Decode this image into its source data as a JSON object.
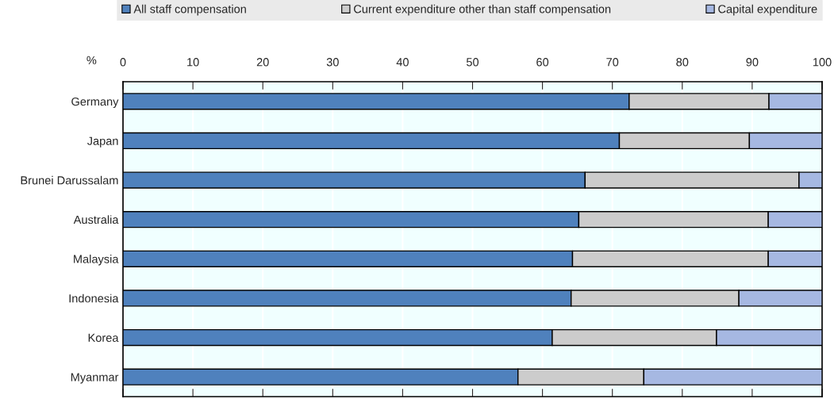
{
  "chart_data": {
    "type": "bar",
    "orientation": "horizontal",
    "stacked": true,
    "xlabel": "%",
    "categories": [
      "Germany",
      "Japan",
      "Brunei Darussalam",
      "Australia",
      "Malaysia",
      "Indonesia",
      "Korea",
      "Myanmar"
    ],
    "series": [
      {
        "name": "All staff compensation",
        "color": "#4f81bd",
        "values": [
          72.4,
          71.0,
          66.1,
          65.2,
          64.3,
          64.1,
          61.4,
          56.5
        ]
      },
      {
        "name": "Current expenditure other than staff compensation",
        "color": "#cccccc",
        "values": [
          20.0,
          18.6,
          30.6,
          27.1,
          28.0,
          24.0,
          23.5,
          18.0
        ]
      },
      {
        "name": "Capital expenditure",
        "color": "#a6b8e2",
        "values": [
          7.6,
          10.4,
          3.3,
          7.7,
          7.7,
          11.9,
          15.1,
          25.5
        ]
      }
    ],
    "xlim": [
      0,
      100
    ],
    "xticks": [
      0,
      10,
      20,
      30,
      40,
      50,
      60,
      70,
      80,
      90,
      100
    ],
    "grid": "x",
    "legend": "top"
  }
}
